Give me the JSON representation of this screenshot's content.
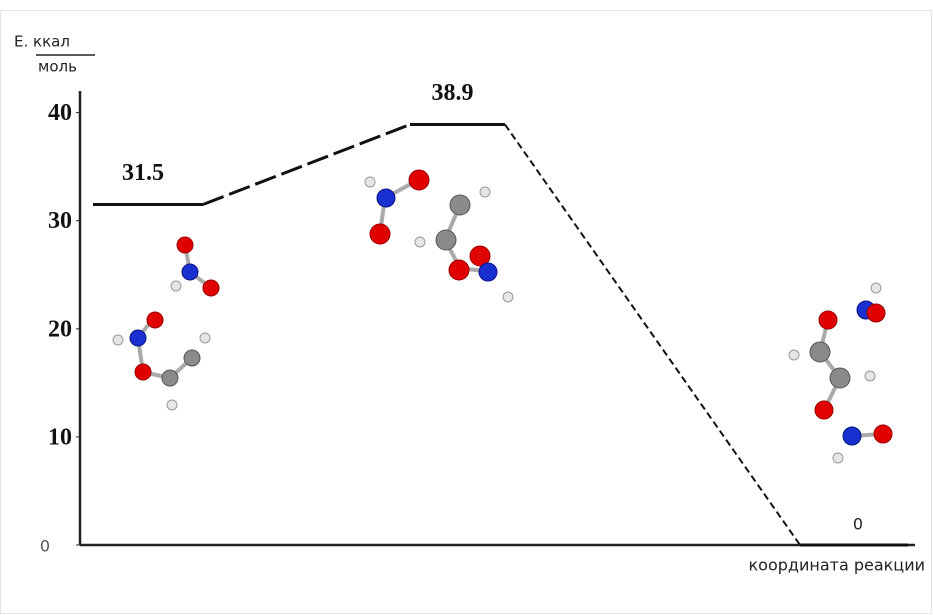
{
  "chart_data": {
    "type": "energy-profile",
    "ylabel": {
      "numerator": "Е. ккал",
      "denominator": "моль"
    },
    "xlabel": "координата реакции",
    "values": [
      31.5,
      38.9,
      0
    ],
    "ylim": [
      0,
      42
    ],
    "yticks": [
      0,
      10,
      20,
      30,
      40
    ]
  }
}
